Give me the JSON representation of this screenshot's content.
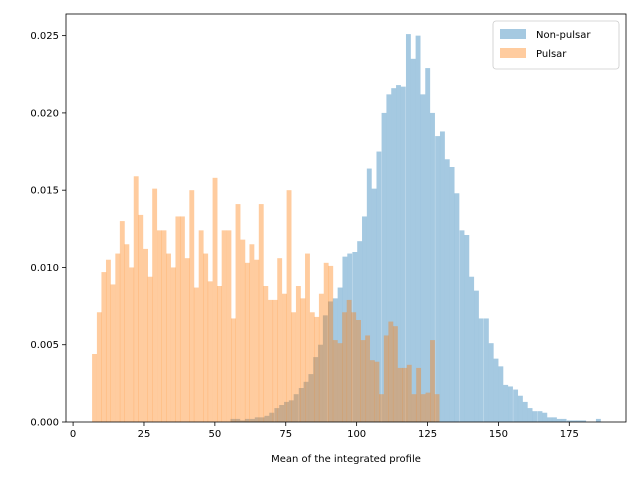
{
  "chart_data": {
    "type": "bar",
    "title": "",
    "xlabel": "Mean of the integrated profile",
    "ylabel": "",
    "xlim": [
      -2.5,
      195.0
    ],
    "ylim": [
      0,
      0.0264
    ],
    "xticks": [
      0,
      25,
      50,
      75,
      100,
      125,
      150,
      175
    ],
    "yticks": [
      0.0,
      0.005,
      0.01,
      0.015,
      0.02,
      0.025
    ],
    "ytick_labels": [
      "0.000",
      "0.005",
      "0.010",
      "0.015",
      "0.020",
      "0.025"
    ],
    "grid": false,
    "legend_position": "top-right",
    "bin_width": 1.72,
    "series": [
      {
        "name": "Non-pulsar",
        "color": "#1f77b4",
        "opacity": 0.4,
        "bins": [
          [
            55.5,
            0.0002
          ],
          [
            57.2,
            0.0002
          ],
          [
            58.9,
            0.0001
          ],
          [
            60.6,
            0.0002
          ],
          [
            62.4,
            0.0002
          ],
          [
            64.1,
            0.0003
          ],
          [
            65.8,
            0.0003
          ],
          [
            67.5,
            0.0004
          ],
          [
            69.2,
            0.0006
          ],
          [
            71.0,
            0.0009
          ],
          [
            72.7,
            0.0011
          ],
          [
            74.4,
            0.0013
          ],
          [
            76.1,
            0.0014
          ],
          [
            77.8,
            0.0018
          ],
          [
            79.6,
            0.0022
          ],
          [
            81.3,
            0.0026
          ],
          [
            83.0,
            0.0031
          ],
          [
            84.7,
            0.0042
          ],
          [
            86.4,
            0.005
          ],
          [
            88.1,
            0.0069
          ],
          [
            89.9,
            0.0078
          ],
          [
            91.6,
            0.008
          ],
          [
            93.3,
            0.0087
          ],
          [
            95.0,
            0.0107
          ],
          [
            96.7,
            0.0109
          ],
          [
            98.5,
            0.011
          ],
          [
            100.2,
            0.0117
          ],
          [
            101.9,
            0.0133
          ],
          [
            103.6,
            0.0164
          ],
          [
            105.3,
            0.0151
          ],
          [
            107.0,
            0.0175
          ],
          [
            108.8,
            0.02
          ],
          [
            110.5,
            0.0212
          ],
          [
            112.2,
            0.0216
          ],
          [
            113.9,
            0.0218
          ],
          [
            115.6,
            0.0217
          ],
          [
            117.4,
            0.0251
          ],
          [
            119.1,
            0.0235
          ],
          [
            120.8,
            0.025
          ],
          [
            122.5,
            0.0212
          ],
          [
            124.2,
            0.0229
          ],
          [
            125.9,
            0.02
          ],
          [
            127.7,
            0.0185
          ],
          [
            129.4,
            0.0188
          ],
          [
            131.1,
            0.017
          ],
          [
            132.8,
            0.0165
          ],
          [
            134.5,
            0.0148
          ],
          [
            136.3,
            0.0124
          ],
          [
            138.0,
            0.0121
          ],
          [
            139.7,
            0.0094
          ],
          [
            141.4,
            0.0085
          ],
          [
            143.1,
            0.0067
          ],
          [
            144.9,
            0.0067
          ],
          [
            146.6,
            0.0051
          ],
          [
            148.3,
            0.0041
          ],
          [
            150.0,
            0.0036
          ],
          [
            151.7,
            0.0024
          ],
          [
            153.4,
            0.0023
          ],
          [
            155.2,
            0.0021
          ],
          [
            156.9,
            0.0017
          ],
          [
            158.6,
            0.0013
          ],
          [
            160.3,
            0.0009
          ],
          [
            162.0,
            0.0007
          ],
          [
            163.8,
            0.0007
          ],
          [
            165.5,
            0.0006
          ],
          [
            167.2,
            0.0003
          ],
          [
            168.9,
            0.0003
          ],
          [
            170.6,
            0.0002
          ],
          [
            172.3,
            0.0002
          ],
          [
            174.1,
            0.0001
          ],
          [
            175.8,
            0.0001
          ],
          [
            177.5,
            0.0001
          ],
          [
            179.2,
            0.0001
          ],
          [
            184.4,
            0.0002
          ]
        ]
      },
      {
        "name": "Pulsar",
        "color": "#ff7f0e",
        "opacity": 0.4,
        "bins": [
          [
            6.7,
            0.0044
          ],
          [
            8.4,
            0.0071
          ],
          [
            10.0,
            0.0097
          ],
          [
            11.6,
            0.0105
          ],
          [
            13.2,
            0.0089
          ],
          [
            14.9,
            0.0109
          ],
          [
            16.5,
            0.013
          ],
          [
            18.1,
            0.0115
          ],
          [
            19.8,
            0.01
          ],
          [
            21.4,
            0.0159
          ],
          [
            23.0,
            0.0134
          ],
          [
            24.7,
            0.0112
          ],
          [
            26.3,
            0.0094
          ],
          [
            27.9,
            0.0151
          ],
          [
            29.6,
            0.0124
          ],
          [
            31.2,
            0.0124
          ],
          [
            32.8,
            0.0109
          ],
          [
            34.5,
            0.01
          ],
          [
            36.1,
            0.0133
          ],
          [
            37.7,
            0.0133
          ],
          [
            39.4,
            0.0106
          ],
          [
            41.0,
            0.015
          ],
          [
            42.6,
            0.0087
          ],
          [
            44.3,
            0.0124
          ],
          [
            45.9,
            0.0109
          ],
          [
            47.5,
            0.0091
          ],
          [
            49.2,
            0.0158
          ],
          [
            50.8,
            0.0088
          ],
          [
            52.4,
            0.0124
          ],
          [
            54.1,
            0.0124
          ],
          [
            55.7,
            0.0067
          ],
          [
            57.3,
            0.0141
          ],
          [
            59.0,
            0.0118
          ],
          [
            60.6,
            0.0103
          ],
          [
            62.2,
            0.0115
          ],
          [
            63.9,
            0.0105
          ],
          [
            65.5,
            0.0141
          ],
          [
            67.1,
            0.0088
          ],
          [
            68.8,
            0.0079
          ],
          [
            70.4,
            0.0079
          ],
          [
            72.0,
            0.0106
          ],
          [
            73.7,
            0.0083
          ],
          [
            75.3,
            0.015
          ],
          [
            76.9,
            0.0071
          ],
          [
            78.6,
            0.0088
          ],
          [
            80.2,
            0.008
          ],
          [
            81.8,
            0.0109
          ],
          [
            83.5,
            0.0071
          ],
          [
            85.1,
            0.0068
          ],
          [
            86.7,
            0.0083
          ],
          [
            88.4,
            0.0103
          ],
          [
            90.0,
            0.0101
          ],
          [
            91.6,
            0.0053
          ],
          [
            93.3,
            0.0051
          ],
          [
            94.9,
            0.0071
          ],
          [
            96.5,
            0.0079
          ],
          [
            98.1,
            0.0071
          ],
          [
            99.8,
            0.0066
          ],
          [
            101.4,
            0.0053
          ],
          [
            103.0,
            0.0056
          ],
          [
            104.7,
            0.004
          ],
          [
            106.3,
            0.0039
          ],
          [
            107.9,
            0.0018
          ],
          [
            109.6,
            0.0056
          ],
          [
            111.2,
            0.0065
          ],
          [
            112.8,
            0.0062
          ],
          [
            114.5,
            0.0035
          ],
          [
            116.1,
            0.0035
          ],
          [
            117.7,
            0.0037
          ],
          [
            119.4,
            0.0018
          ],
          [
            121.0,
            0.0035
          ],
          [
            122.6,
            0.0018
          ],
          [
            124.3,
            0.0019
          ],
          [
            125.9,
            0.0053
          ],
          [
            127.5,
            0.0018
          ]
        ]
      }
    ]
  }
}
